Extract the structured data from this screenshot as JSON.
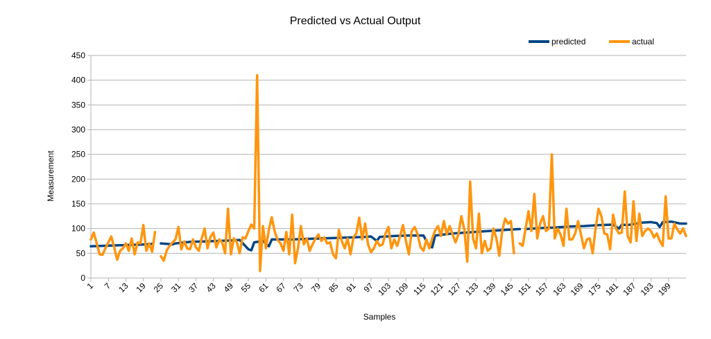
{
  "chart_data": {
    "type": "line",
    "title": "Predicted vs Actual Output",
    "xlabel": "Samples",
    "ylabel": "Measurement",
    "ylim": [
      0,
      450
    ],
    "yticks": [
      0,
      50,
      100,
      150,
      200,
      250,
      300,
      350,
      400,
      450
    ],
    "x_range": [
      1,
      205
    ],
    "x_ticks": [
      1,
      7,
      13,
      19,
      25,
      31,
      37,
      43,
      49,
      55,
      61,
      67,
      73,
      79,
      85,
      91,
      97,
      103,
      109,
      115,
      121,
      127,
      133,
      139,
      145,
      151,
      157,
      163,
      169,
      175,
      181,
      187,
      193,
      199
    ],
    "grid": "horizontal",
    "legend_position": "top-right",
    "series": [
      {
        "name": "predicted",
        "color": "#004586",
        "points": [
          [
            1,
            64
          ],
          [
            5,
            65
          ],
          [
            10,
            66
          ],
          [
            15,
            67
          ],
          [
            20,
            68
          ],
          [
            22,
            69
          ],
          [
            24,
            null
          ],
          [
            25,
            70
          ],
          [
            27,
            69
          ],
          [
            29,
            68
          ],
          [
            30,
            70
          ],
          [
            35,
            73
          ],
          [
            40,
            74
          ],
          [
            45,
            75
          ],
          [
            50,
            76
          ],
          [
            52,
            77
          ],
          [
            55,
            58
          ],
          [
            56,
            56
          ],
          [
            57,
            72
          ],
          [
            60,
            75
          ],
          [
            62,
            64
          ],
          [
            63,
            78
          ],
          [
            65,
            78
          ],
          [
            70,
            78
          ],
          [
            75,
            79
          ],
          [
            80,
            80
          ],
          [
            85,
            81
          ],
          [
            90,
            82
          ],
          [
            95,
            83
          ],
          [
            97,
            84
          ],
          [
            99,
            75
          ],
          [
            100,
            83
          ],
          [
            105,
            85
          ],
          [
            110,
            86
          ],
          [
            115,
            86
          ],
          [
            117,
            64
          ],
          [
            118,
            62
          ],
          [
            119,
            86
          ],
          [
            122,
            88
          ],
          [
            125,
            90
          ],
          [
            130,
            92
          ],
          [
            135,
            94
          ],
          [
            140,
            96
          ],
          [
            145,
            98
          ],
          [
            148,
            99
          ],
          [
            149,
            null
          ],
          [
            150,
            99
          ],
          [
            155,
            101
          ],
          [
            160,
            102
          ],
          [
            165,
            104
          ],
          [
            170,
            105
          ],
          [
            175,
            107
          ],
          [
            180,
            108
          ],
          [
            182,
            100
          ],
          [
            183,
            108
          ],
          [
            185,
            107
          ],
          [
            188,
            110
          ],
          [
            190,
            112
          ],
          [
            193,
            113
          ],
          [
            195,
            111
          ],
          [
            196,
            103
          ],
          [
            197,
            113
          ],
          [
            200,
            114
          ],
          [
            203,
            110
          ],
          [
            205,
            110
          ]
        ]
      },
      {
        "name": "actual",
        "color": "#ff950e",
        "points": [
          [
            1,
            78
          ],
          [
            2,
            92
          ],
          [
            3,
            70
          ],
          [
            4,
            48
          ],
          [
            5,
            47
          ],
          [
            6,
            60
          ],
          [
            7,
            72
          ],
          [
            8,
            84
          ],
          [
            9,
            62
          ],
          [
            10,
            37
          ],
          [
            11,
            55
          ],
          [
            12,
            60
          ],
          [
            13,
            70
          ],
          [
            14,
            55
          ],
          [
            15,
            80
          ],
          [
            16,
            48
          ],
          [
            17,
            72
          ],
          [
            18,
            70
          ],
          [
            19,
            107
          ],
          [
            20,
            55
          ],
          [
            21,
            70
          ],
          [
            22,
            53
          ],
          [
            23,
            93
          ],
          [
            24,
            null
          ],
          [
            25,
            44
          ],
          [
            26,
            35
          ],
          [
            27,
            56
          ],
          [
            28,
            65
          ],
          [
            29,
            72
          ],
          [
            30,
            78
          ],
          [
            31,
            103
          ],
          [
            32,
            58
          ],
          [
            33,
            74
          ],
          [
            34,
            60
          ],
          [
            35,
            58
          ],
          [
            36,
            78
          ],
          [
            37,
            62
          ],
          [
            38,
            55
          ],
          [
            39,
            80
          ],
          [
            40,
            100
          ],
          [
            41,
            60
          ],
          [
            42,
            83
          ],
          [
            43,
            92
          ],
          [
            44,
            62
          ],
          [
            45,
            78
          ],
          [
            46,
            72
          ],
          [
            47,
            50
          ],
          [
            48,
            140
          ],
          [
            49,
            48
          ],
          [
            50,
            80
          ],
          [
            51,
            73
          ],
          [
            52,
            50
          ],
          [
            53,
            82
          ],
          [
            54,
            80
          ],
          [
            55,
            95
          ],
          [
            56,
            108
          ],
          [
            57,
            100
          ],
          [
            58,
            410
          ],
          [
            59,
            14
          ],
          [
            60,
            105
          ],
          [
            61,
            60
          ],
          [
            62,
            98
          ],
          [
            63,
            123
          ],
          [
            64,
            94
          ],
          [
            65,
            77
          ],
          [
            66,
            70
          ],
          [
            67,
            55
          ],
          [
            68,
            93
          ],
          [
            69,
            48
          ],
          [
            70,
            128
          ],
          [
            71,
            30
          ],
          [
            72,
            60
          ],
          [
            73,
            105
          ],
          [
            74,
            68
          ],
          [
            75,
            80
          ],
          [
            76,
            55
          ],
          [
            77,
            68
          ],
          [
            78,
            80
          ],
          [
            79,
            88
          ],
          [
            80,
            75
          ],
          [
            81,
            82
          ],
          [
            82,
            70
          ],
          [
            83,
            72
          ],
          [
            84,
            48
          ],
          [
            85,
            40
          ],
          [
            86,
            97
          ],
          [
            87,
            75
          ],
          [
            88,
            60
          ],
          [
            89,
            80
          ],
          [
            90,
            48
          ],
          [
            91,
            82
          ],
          [
            92,
            90
          ],
          [
            93,
            122
          ],
          [
            94,
            78
          ],
          [
            95,
            110
          ],
          [
            96,
            68
          ],
          [
            97,
            52
          ],
          [
            98,
            60
          ],
          [
            99,
            75
          ],
          [
            100,
            65
          ],
          [
            101,
            68
          ],
          [
            102,
            90
          ],
          [
            103,
            103
          ],
          [
            104,
            60
          ],
          [
            105,
            78
          ],
          [
            106,
            65
          ],
          [
            107,
            85
          ],
          [
            108,
            107
          ],
          [
            109,
            75
          ],
          [
            110,
            48
          ],
          [
            111,
            95
          ],
          [
            112,
            103
          ],
          [
            113,
            88
          ],
          [
            114,
            62
          ],
          [
            115,
            55
          ],
          [
            116,
            78
          ],
          [
            117,
            60
          ],
          [
            118,
            80
          ],
          [
            119,
            96
          ],
          [
            120,
            105
          ],
          [
            121,
            85
          ],
          [
            122,
            115
          ],
          [
            123,
            88
          ],
          [
            124,
            105
          ],
          [
            125,
            88
          ],
          [
            126,
            72
          ],
          [
            127,
            88
          ],
          [
            128,
            125
          ],
          [
            129,
            98
          ],
          [
            130,
            33
          ],
          [
            131,
            195
          ],
          [
            132,
            80
          ],
          [
            133,
            60
          ],
          [
            134,
            130
          ],
          [
            135,
            50
          ],
          [
            136,
            75
          ],
          [
            137,
            55
          ],
          [
            138,
            60
          ],
          [
            139,
            100
          ],
          [
            140,
            80
          ],
          [
            141,
            45
          ],
          [
            142,
            95
          ],
          [
            143,
            120
          ],
          [
            144,
            110
          ],
          [
            145,
            115
          ],
          [
            146,
            50
          ],
          [
            147,
            null
          ],
          [
            148,
            70
          ],
          [
            149,
            65
          ],
          [
            150,
            100
          ],
          [
            151,
            135
          ],
          [
            152,
            95
          ],
          [
            153,
            170
          ],
          [
            154,
            80
          ],
          [
            155,
            110
          ],
          [
            156,
            125
          ],
          [
            157,
            95
          ],
          [
            158,
            100
          ],
          [
            159,
            250
          ],
          [
            160,
            80
          ],
          [
            161,
            100
          ],
          [
            162,
            88
          ],
          [
            163,
            65
          ],
          [
            164,
            140
          ],
          [
            165,
            78
          ],
          [
            166,
            78
          ],
          [
            167,
            90
          ],
          [
            168,
            115
          ],
          [
            169,
            88
          ],
          [
            170,
            60
          ],
          [
            171,
            78
          ],
          [
            172,
            80
          ],
          [
            173,
            50
          ],
          [
            174,
            100
          ],
          [
            175,
            140
          ],
          [
            176,
            125
          ],
          [
            177,
            90
          ],
          [
            178,
            88
          ],
          [
            179,
            58
          ],
          [
            180,
            128
          ],
          [
            181,
            100
          ],
          [
            182,
            90
          ],
          [
            183,
            92
          ],
          [
            184,
            175
          ],
          [
            185,
            85
          ],
          [
            186,
            72
          ],
          [
            187,
            155
          ],
          [
            188,
            75
          ],
          [
            189,
            130
          ],
          [
            190,
            85
          ],
          [
            191,
            95
          ],
          [
            192,
            100
          ],
          [
            193,
            95
          ],
          [
            194,
            82
          ],
          [
            195,
            90
          ],
          [
            196,
            75
          ],
          [
            197,
            65
          ],
          [
            198,
            165
          ],
          [
            199,
            80
          ],
          [
            200,
            80
          ],
          [
            201,
            110
          ],
          [
            202,
            98
          ],
          [
            203,
            90
          ],
          [
            204,
            100
          ],
          [
            205,
            85
          ]
        ]
      }
    ]
  }
}
